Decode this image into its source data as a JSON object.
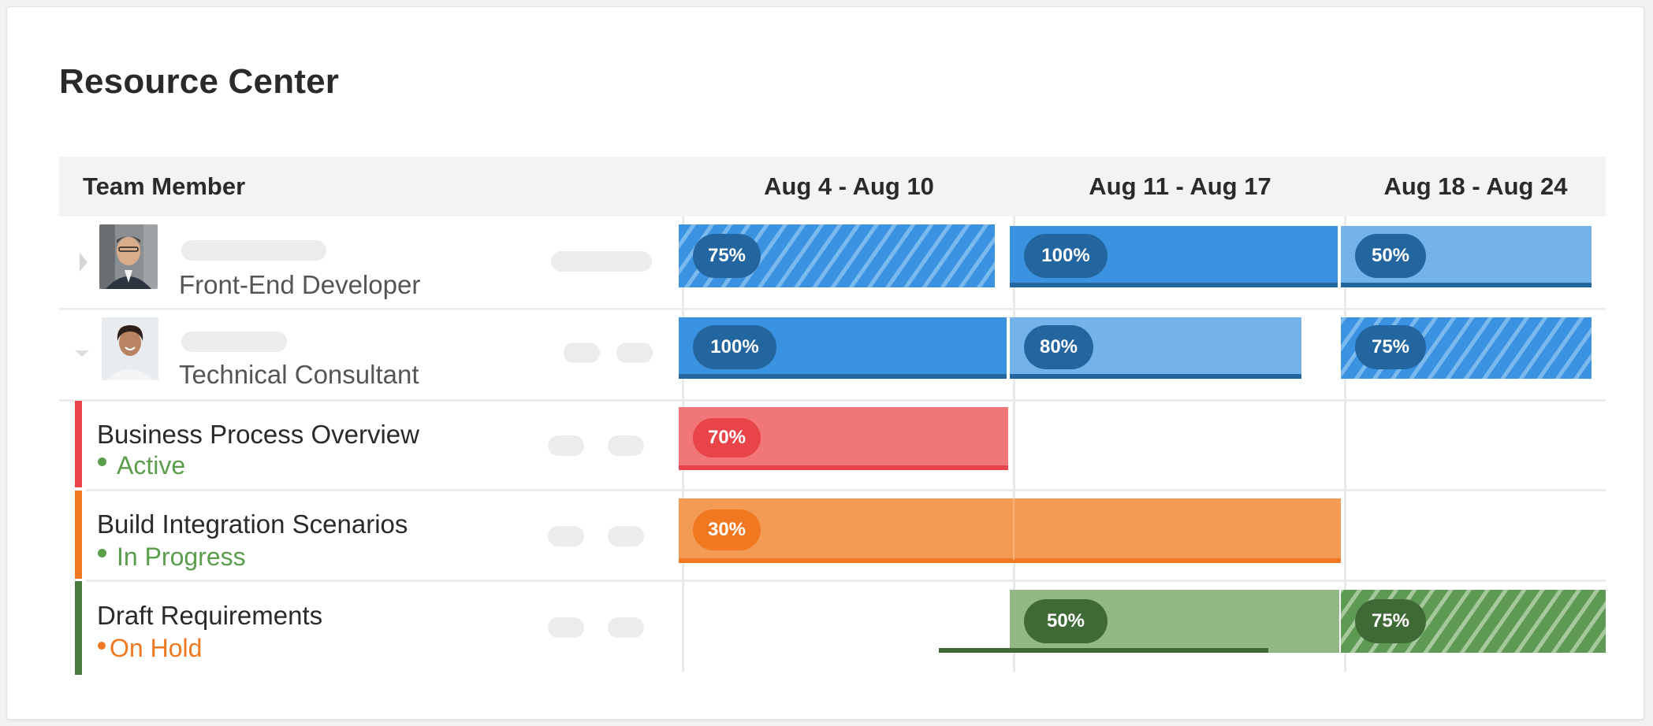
{
  "title": "Resource Center",
  "header": {
    "member_label": "Team Member",
    "weeks": [
      "Aug 4 - Aug 10",
      "Aug 11 - Aug 17",
      "Aug 18 - Aug 24"
    ]
  },
  "members": [
    {
      "role": "Front-End Developer",
      "expander": "collapsed",
      "allocations": [
        {
          "week": 1,
          "percent": "75%",
          "style": "hatched-blue"
        },
        {
          "week": 2,
          "percent": "100%",
          "style": "solid-blue"
        },
        {
          "week": 3,
          "percent": "50%",
          "style": "light-blue"
        }
      ]
    },
    {
      "role": "Technical Consultant",
      "expander": "expanded",
      "allocations": [
        {
          "week": 1,
          "percent": "100%",
          "style": "solid-blue"
        },
        {
          "week": 2,
          "percent": "80%",
          "style": "light-blue"
        },
        {
          "week": 3,
          "percent": "75%",
          "style": "hatched-blue"
        }
      ]
    }
  ],
  "tasks": [
    {
      "name": "Business Process Overview",
      "status": "Active",
      "status_color": "#5a9e4b",
      "accent": "#e8444a",
      "allocation": "70%"
    },
    {
      "name": "Build Integration Scenarios",
      "status": "In Progress",
      "status_color": "#5a9e4b",
      "accent": "#f07820",
      "allocation": "30%"
    },
    {
      "name": "Draft Requirements",
      "status": "On Hold",
      "status_color": "#f07820",
      "accent": "#4a7a3e",
      "allocations": [
        "50%",
        "75%"
      ]
    }
  ],
  "colors": {
    "blue_solid": "#3a92e0",
    "blue_light": "#74b3ea",
    "blue_pill": "#23659f",
    "red_bar": "#f07677",
    "red_pill": "#e8444a",
    "orange_bar": "#f39b55",
    "orange_pill": "#f07820",
    "green_bar": "#93b886",
    "green_pill": "#3f6a36"
  }
}
